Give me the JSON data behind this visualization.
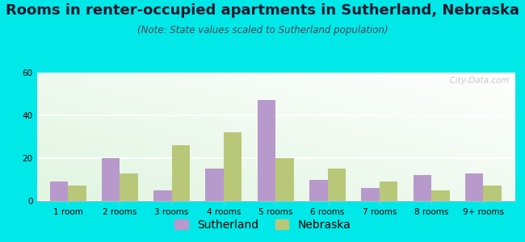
{
  "title": "Rooms in renter-occupied apartments in Sutherland, Nebraska",
  "subtitle": "(Note: State values scaled to Sutherland population)",
  "categories": [
    "1 room",
    "2 rooms",
    "3 rooms",
    "4 rooms",
    "5 rooms",
    "6 rooms",
    "7 rooms",
    "8 rooms",
    "9+ rooms"
  ],
  "sutherland_values": [
    9,
    20,
    5,
    15,
    47,
    10,
    6,
    12,
    13
  ],
  "nebraska_values": [
    7,
    13,
    26,
    32,
    20,
    15,
    9,
    5,
    7
  ],
  "sutherland_color": "#b899cc",
  "nebraska_color": "#b8c878",
  "background_outer": "#00e8e8",
  "ylim": [
    0,
    60
  ],
  "yticks": [
    0,
    20,
    40,
    60
  ],
  "bar_width": 0.35,
  "title_fontsize": 13,
  "subtitle_fontsize": 8.5,
  "legend_fontsize": 10,
  "tick_fontsize": 7.5,
  "watermark": "  City-Data.com"
}
